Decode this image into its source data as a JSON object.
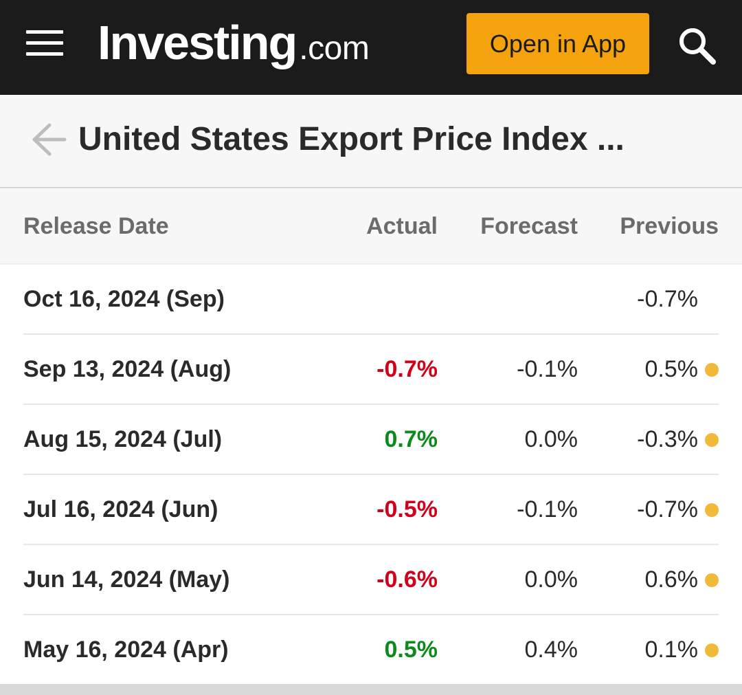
{
  "header": {
    "logo_main": "Investing",
    "logo_tld": ".com",
    "open_app_label": "Open in App",
    "accent_color": "#f5a20f",
    "menu_icon": "hamburger-menu-icon",
    "search_icon": "search-icon"
  },
  "title_bar": {
    "back_icon": "back-arrow-icon",
    "title": "United States Export Price Index ..."
  },
  "table": {
    "headers": {
      "release_date": "Release Date",
      "actual": "Actual",
      "forecast": "Forecast",
      "previous": "Previous"
    },
    "rows": [
      {
        "date": "Oct 16, 2024 (Sep)",
        "actual": "",
        "actual_trend": "",
        "forecast": "",
        "previous": "-0.7%",
        "revised": false
      },
      {
        "date": "Sep 13, 2024 (Aug)",
        "actual": "-0.7%",
        "actual_trend": "neg",
        "forecast": "-0.1%",
        "previous": "0.5%",
        "revised": true
      },
      {
        "date": "Aug 15, 2024 (Jul)",
        "actual": "0.7%",
        "actual_trend": "pos",
        "forecast": "0.0%",
        "previous": "-0.3%",
        "revised": true
      },
      {
        "date": "Jul 16, 2024 (Jun)",
        "actual": "-0.5%",
        "actual_trend": "neg",
        "forecast": "-0.1%",
        "previous": "-0.7%",
        "revised": true
      },
      {
        "date": "Jun 14, 2024 (May)",
        "actual": "-0.6%",
        "actual_trend": "neg",
        "forecast": "0.0%",
        "previous": "0.6%",
        "revised": true
      },
      {
        "date": "May 16, 2024 (Apr)",
        "actual": "0.5%",
        "actual_trend": "pos",
        "forecast": "0.4%",
        "previous": "0.1%",
        "revised": true
      }
    ],
    "colors": {
      "negative": "#d0021b",
      "positive": "#0d8a1c",
      "revised_dot": "#f0b93a"
    }
  }
}
